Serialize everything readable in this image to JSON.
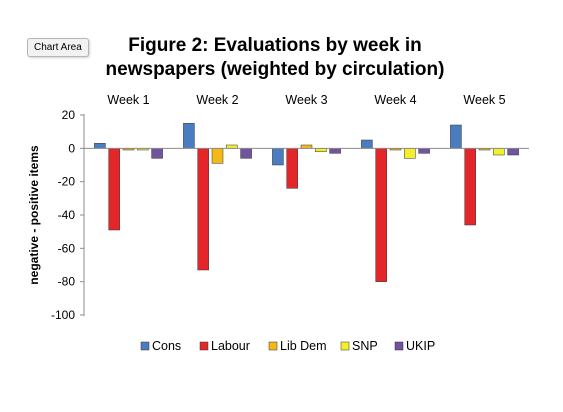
{
  "tooltip": "Chart Area",
  "chart_data": {
    "type": "bar",
    "title_lines": [
      "Figure 2: Evaluations by week in",
      "newspapers (weighted by circulation)"
    ],
    "xlabel": "",
    "ylabel": "negative - positive items",
    "categories": [
      "Week 1",
      "Week 2",
      "Week 3",
      "Week 4",
      "Week 5"
    ],
    "x_axis_position": "top",
    "ylim": [
      -100,
      20
    ],
    "yticks": [
      20,
      0,
      -20,
      -40,
      -60,
      -80,
      -100
    ],
    "grid": false,
    "legend_position": "bottom",
    "series": [
      {
        "name": "Cons",
        "color": "#4a7cc0",
        "values": [
          3,
          15,
          -10,
          5,
          14
        ]
      },
      {
        "name": "Labour",
        "color": "#e3262a",
        "values": [
          -49,
          -73,
          -24,
          -80,
          -46
        ]
      },
      {
        "name": "Lib Dem",
        "color": "#f5b819",
        "values": [
          -1,
          -9,
          2,
          -1,
          -1
        ]
      },
      {
        "name": "SNP",
        "color": "#f4ef2b",
        "values": [
          -1,
          2,
          -2,
          -6,
          -4
        ]
      },
      {
        "name": "UKIP",
        "color": "#7153a0",
        "values": [
          -6,
          -6,
          -3,
          -3,
          -4
        ]
      }
    ]
  }
}
